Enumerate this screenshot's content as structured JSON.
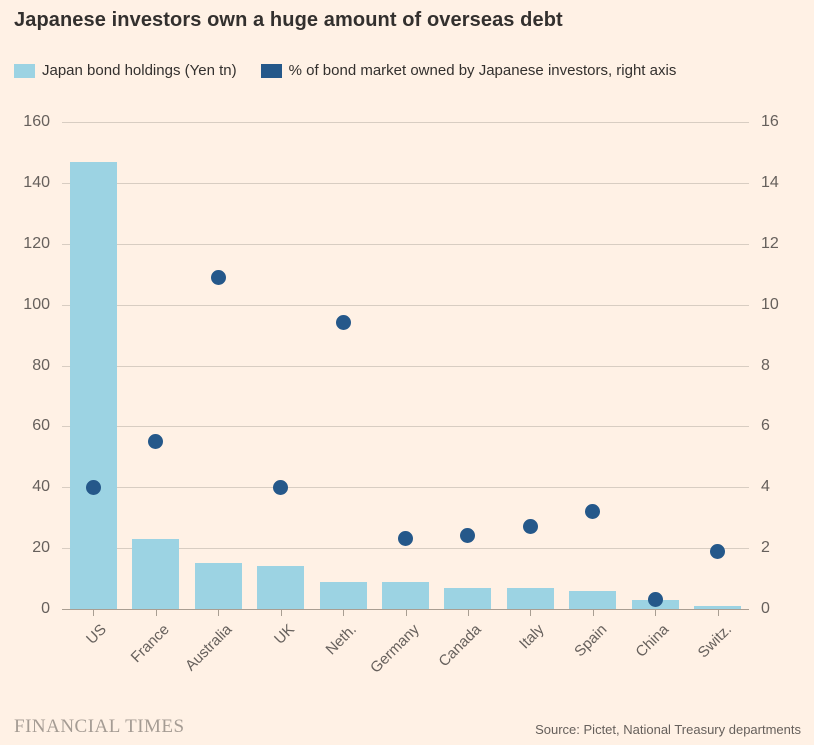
{
  "header": {
    "title": "Japanese investors own a huge amount of overseas debt"
  },
  "legend": {
    "items": [
      {
        "label": "Japan bond holdings (Yen tn)",
        "color": "#9CD3E3"
      },
      {
        "label": "% of bond market owned by Japanese investors, right axis",
        "color": "#25588A"
      }
    ]
  },
  "chart_data": {
    "type": "bar+scatter",
    "title": "Japanese investors own a huge amount of overseas debt",
    "categories": [
      "US",
      "France",
      "Australia",
      "UK",
      "Neth.",
      "Germany",
      "Canada",
      "Italy",
      "Spain",
      "China",
      "Switz."
    ],
    "series": [
      {
        "name": "Japan bond holdings (Yen tn)",
        "type": "bar",
        "axis": "left",
        "values": [
          147,
          23,
          15,
          14,
          9,
          9,
          7,
          7,
          6,
          3,
          1
        ]
      },
      {
        "name": "% of bond market owned by Japanese investors",
        "type": "scatter",
        "axis": "right",
        "values": [
          4.0,
          5.5,
          10.9,
          4.0,
          9.4,
          2.3,
          2.4,
          2.7,
          3.2,
          0.3,
          1.9
        ]
      }
    ],
    "left_axis": {
      "min": 0,
      "max": 160,
      "step": 20,
      "tick_labels": [
        "0",
        "20",
        "40",
        "60",
        "80",
        "100",
        "120",
        "140",
        "160"
      ]
    },
    "right_axis": {
      "min": 0,
      "max": 16,
      "step": 2,
      "tick_labels": [
        "0",
        "2",
        "4",
        "6",
        "8",
        "10",
        "12",
        "14",
        "16"
      ]
    },
    "grid": true,
    "legend_position": "top-left",
    "xlabel": "",
    "ylabel_left": "Yen tn",
    "ylabel_right": "%"
  },
  "footer": {
    "brand": "FINANCIAL TIMES",
    "source": "Source: Pictet, National Treasury departments"
  },
  "colors": {
    "background": "#FFF1E5",
    "bar": "#9CD3E3",
    "dot": "#25588A",
    "grid": "#D8CDC2",
    "axis_line": "#A99E92",
    "tick_text": "#66605C",
    "title_text": "#33302E",
    "brand_text": "#A59C94"
  }
}
